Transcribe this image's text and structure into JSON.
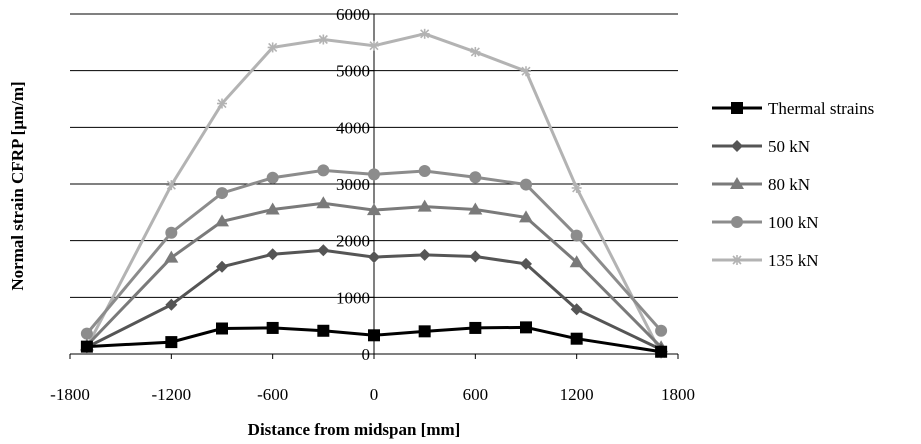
{
  "chart_data": {
    "type": "line",
    "xlabel": "Distance from midspan [mm]",
    "ylabel": "Normal strain CFRP [μm/m]",
    "xlim": [
      -1800,
      1800
    ],
    "ylim": [
      0,
      6000
    ],
    "xticks": [
      -1800,
      -1200,
      -600,
      0,
      600,
      1200,
      1800
    ],
    "yticks": [
      0,
      1000,
      2000,
      3000,
      4000,
      5000,
      6000
    ],
    "grid": "horizontal",
    "legend_position": "right",
    "series": [
      {
        "name": "Thermal strains",
        "color": "#000000",
        "marker": "square",
        "points": [
          [
            -1700,
            130
          ],
          [
            -1200,
            210
          ],
          [
            -900,
            450
          ],
          [
            -600,
            460
          ],
          [
            -300,
            410
          ],
          [
            0,
            330
          ],
          [
            300,
            400
          ],
          [
            600,
            460
          ],
          [
            900,
            470
          ],
          [
            1200,
            270
          ],
          [
            1700,
            40
          ]
        ]
      },
      {
        "name": "50 kN",
        "color": "#555555",
        "marker": "diamond",
        "points": [
          [
            -1700,
            120
          ],
          [
            -1200,
            870
          ],
          [
            -900,
            1540
          ],
          [
            -600,
            1760
          ],
          [
            -300,
            1830
          ],
          [
            0,
            1710
          ],
          [
            300,
            1750
          ],
          [
            600,
            1720
          ],
          [
            900,
            1590
          ],
          [
            1200,
            790
          ],
          [
            1700,
            80
          ]
        ]
      },
      {
        "name": "80 kN",
        "color": "#7a7a7a",
        "marker": "triangle",
        "points": [
          [
            -1700,
            150
          ],
          [
            -1200,
            1700
          ],
          [
            -900,
            2340
          ],
          [
            -600,
            2550
          ],
          [
            -300,
            2660
          ],
          [
            0,
            2540
          ],
          [
            300,
            2600
          ],
          [
            600,
            2550
          ],
          [
            900,
            2410
          ],
          [
            1200,
            1620
          ],
          [
            1700,
            120
          ]
        ]
      },
      {
        "name": "100 kN",
        "color": "#8c8c8c",
        "marker": "circle",
        "points": [
          [
            -1700,
            360
          ],
          [
            -1200,
            2140
          ],
          [
            -900,
            2840
          ],
          [
            -600,
            3110
          ],
          [
            -300,
            3240
          ],
          [
            0,
            3170
          ],
          [
            300,
            3230
          ],
          [
            600,
            3120
          ],
          [
            900,
            2990
          ],
          [
            1200,
            2090
          ],
          [
            1700,
            410
          ]
        ]
      },
      {
        "name": "135 kN",
        "color": "#b3b3b3",
        "marker": "star",
        "points": [
          [
            -1700,
            120
          ],
          [
            -1200,
            2980
          ],
          [
            -900,
            4420
          ],
          [
            -600,
            5410
          ],
          [
            -300,
            5550
          ],
          [
            0,
            5440
          ],
          [
            300,
            5650
          ],
          [
            600,
            5330
          ],
          [
            900,
            4990
          ],
          [
            1200,
            2930
          ],
          [
            1700,
            10
          ]
        ]
      }
    ]
  }
}
